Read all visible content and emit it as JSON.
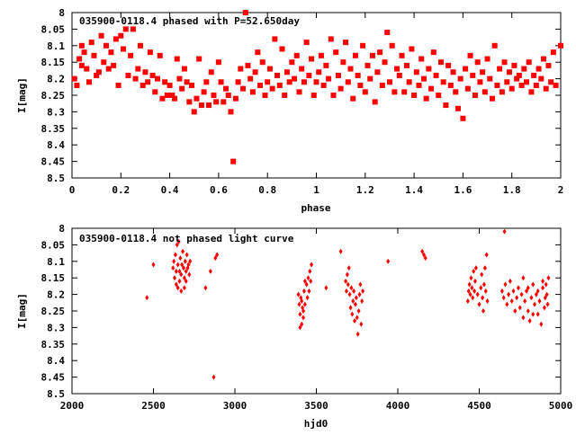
{
  "chart_data": [
    {
      "type": "scatter",
      "title": "035900-0118.4 phased with P=52.650day",
      "xlabel": "phase",
      "ylabel": "I[mag]",
      "xlim": [
        0,
        2
      ],
      "ylim": [
        8.5,
        8.0
      ],
      "y_inverted": true,
      "grid": false,
      "marker_color": "#ff0000",
      "x_ticks": [
        "0",
        "0.2",
        "0.4",
        "0.6",
        "0.8",
        "1",
        "1.2",
        "1.4",
        "1.6",
        "1.8",
        "2"
      ],
      "y_ticks": [
        "8",
        "8.05",
        "8.1",
        "8.15",
        "8.2",
        "8.25",
        "8.3",
        "8.35",
        "8.4",
        "8.45",
        "8.5"
      ],
      "x_tick_values": [
        0,
        0.2,
        0.4,
        0.6,
        0.8,
        1.0,
        1.2,
        1.4,
        1.6,
        1.8,
        2.0
      ],
      "y_tick_values": [
        8.0,
        8.05,
        8.1,
        8.15,
        8.2,
        8.25,
        8.3,
        8.35,
        8.4,
        8.45,
        8.5
      ],
      "points": [
        [
          0.01,
          8.2
        ],
        [
          0.02,
          8.22
        ],
        [
          0.03,
          8.14
        ],
        [
          0.04,
          8.16
        ],
        [
          0.04,
          8.1
        ],
        [
          0.05,
          8.12
        ],
        [
          0.06,
          8.17
        ],
        [
          0.07,
          8.21
        ],
        [
          0.08,
          8.09
        ],
        [
          0.09,
          8.13
        ],
        [
          0.1,
          8.19
        ],
        [
          0.11,
          8.18
        ],
        [
          0.12,
          8.07
        ],
        [
          0.13,
          8.15
        ],
        [
          0.14,
          8.1
        ],
        [
          0.15,
          8.17
        ],
        [
          0.16,
          8.12
        ],
        [
          0.17,
          8.16
        ],
        [
          0.18,
          8.08
        ],
        [
          0.19,
          8.22
        ],
        [
          0.2,
          8.07
        ],
        [
          0.21,
          8.11
        ],
        [
          0.22,
          8.05
        ],
        [
          0.23,
          8.19
        ],
        [
          0.24,
          8.13
        ],
        [
          0.25,
          8.05
        ],
        [
          0.26,
          8.2
        ],
        [
          0.27,
          8.17
        ],
        [
          0.28,
          8.1
        ],
        [
          0.29,
          8.22
        ],
        [
          0.3,
          8.18
        ],
        [
          0.31,
          8.21
        ],
        [
          0.32,
          8.12
        ],
        [
          0.33,
          8.19
        ],
        [
          0.34,
          8.24
        ],
        [
          0.35,
          8.2
        ],
        [
          0.36,
          8.13
        ],
        [
          0.37,
          8.26
        ],
        [
          0.38,
          8.21
        ],
        [
          0.39,
          8.25
        ],
        [
          0.4,
          8.22
        ],
        [
          0.41,
          8.25
        ],
        [
          0.42,
          8.26
        ],
        [
          0.43,
          8.14
        ],
        [
          0.44,
          8.2
        ],
        [
          0.45,
          8.23
        ],
        [
          0.46,
          8.17
        ],
        [
          0.47,
          8.21
        ],
        [
          0.48,
          8.27
        ],
        [
          0.49,
          8.22
        ],
        [
          0.5,
          8.3
        ],
        [
          0.51,
          8.26
        ],
        [
          0.52,
          8.14
        ],
        [
          0.53,
          8.28
        ],
        [
          0.54,
          8.24
        ],
        [
          0.55,
          8.21
        ],
        [
          0.56,
          8.28
        ],
        [
          0.57,
          8.18
        ],
        [
          0.58,
          8.25
        ],
        [
          0.59,
          8.27
        ],
        [
          0.6,
          8.15
        ],
        [
          0.61,
          8.21
        ],
        [
          0.62,
          8.27
        ],
        [
          0.63,
          8.23
        ],
        [
          0.64,
          8.25
        ],
        [
          0.65,
          8.3
        ],
        [
          0.66,
          8.45
        ],
        [
          0.67,
          8.26
        ],
        [
          0.68,
          8.21
        ],
        [
          0.69,
          8.17
        ],
        [
          0.7,
          8.23
        ],
        [
          0.71,
          8.0
        ],
        [
          0.72,
          8.16
        ],
        [
          0.73,
          8.2
        ],
        [
          0.74,
          8.24
        ],
        [
          0.75,
          8.18
        ],
        [
          0.76,
          8.12
        ],
        [
          0.77,
          8.22
        ],
        [
          0.78,
          8.15
        ],
        [
          0.79,
          8.25
        ],
        [
          0.8,
          8.21
        ],
        [
          0.81,
          8.17
        ],
        [
          0.82,
          8.23
        ],
        [
          0.83,
          8.08
        ],
        [
          0.84,
          8.19
        ],
        [
          0.85,
          8.22
        ],
        [
          0.86,
          8.11
        ],
        [
          0.87,
          8.25
        ],
        [
          0.88,
          8.18
        ],
        [
          0.89,
          8.21
        ],
        [
          0.9,
          8.15
        ],
        [
          0.91,
          8.2
        ],
        [
          0.92,
          8.13
        ],
        [
          0.93,
          8.24
        ],
        [
          0.94,
          8.17
        ],
        [
          0.95,
          8.21
        ],
        [
          0.96,
          8.09
        ],
        [
          0.97,
          8.19
        ],
        [
          0.98,
          8.14
        ],
        [
          0.99,
          8.25
        ],
        [
          1.0,
          8.21
        ],
        [
          1.01,
          8.18
        ],
        [
          1.02,
          8.13
        ],
        [
          1.03,
          8.22
        ],
        [
          1.04,
          8.16
        ],
        [
          1.05,
          8.2
        ],
        [
          1.06,
          8.08
        ],
        [
          1.07,
          8.25
        ],
        [
          1.08,
          8.12
        ],
        [
          1.09,
          8.19
        ],
        [
          1.1,
          8.23
        ],
        [
          1.11,
          8.15
        ],
        [
          1.12,
          8.09
        ],
        [
          1.13,
          8.21
        ],
        [
          1.14,
          8.17
        ],
        [
          1.15,
          8.26
        ],
        [
          1.16,
          8.13
        ],
        [
          1.17,
          8.19
        ],
        [
          1.18,
          8.22
        ],
        [
          1.19,
          8.1
        ],
        [
          1.2,
          8.24
        ],
        [
          1.21,
          8.16
        ],
        [
          1.22,
          8.2
        ],
        [
          1.23,
          8.13
        ],
        [
          1.24,
          8.27
        ],
        [
          1.25,
          8.18
        ],
        [
          1.26,
          8.12
        ],
        [
          1.27,
          8.22
        ],
        [
          1.28,
          8.15
        ],
        [
          1.29,
          8.06
        ],
        [
          1.3,
          8.21
        ],
        [
          1.31,
          8.1
        ],
        [
          1.32,
          8.24
        ],
        [
          1.33,
          8.17
        ],
        [
          1.34,
          8.19
        ],
        [
          1.35,
          8.13
        ],
        [
          1.36,
          8.24
        ],
        [
          1.37,
          8.16
        ],
        [
          1.38,
          8.21
        ],
        [
          1.39,
          8.11
        ],
        [
          1.4,
          8.25
        ],
        [
          1.41,
          8.18
        ],
        [
          1.42,
          8.22
        ],
        [
          1.43,
          8.14
        ],
        [
          1.44,
          8.2
        ],
        [
          1.45,
          8.26
        ],
        [
          1.46,
          8.17
        ],
        [
          1.47,
          8.23
        ],
        [
          1.48,
          8.12
        ],
        [
          1.49,
          8.19
        ],
        [
          1.5,
          8.25
        ],
        [
          1.51,
          8.15
        ],
        [
          1.52,
          8.21
        ],
        [
          1.53,
          8.28
        ],
        [
          1.54,
          8.16
        ],
        [
          1.55,
          8.22
        ],
        [
          1.56,
          8.18
        ],
        [
          1.57,
          8.24
        ],
        [
          1.58,
          8.29
        ],
        [
          1.59,
          8.2
        ],
        [
          1.6,
          8.32
        ],
        [
          1.61,
          8.17
        ],
        [
          1.62,
          8.23
        ],
        [
          1.63,
          8.13
        ],
        [
          1.64,
          8.19
        ],
        [
          1.65,
          8.25
        ],
        [
          1.66,
          8.15
        ],
        [
          1.67,
          8.21
        ],
        [
          1.68,
          8.18
        ],
        [
          1.69,
          8.24
        ],
        [
          1.7,
          8.14
        ],
        [
          1.71,
          8.2
        ],
        [
          1.72,
          8.26
        ],
        [
          1.73,
          8.1
        ],
        [
          1.74,
          8.22
        ],
        [
          1.75,
          8.17
        ],
        [
          1.76,
          8.24
        ],
        [
          1.77,
          8.15
        ],
        [
          1.78,
          8.21
        ],
        [
          1.79,
          8.18
        ],
        [
          1.8,
          8.23
        ],
        [
          1.81,
          8.16
        ],
        [
          1.82,
          8.2
        ],
        [
          1.83,
          8.19
        ],
        [
          1.84,
          8.22
        ],
        [
          1.85,
          8.17
        ],
        [
          1.86,
          8.21
        ],
        [
          1.87,
          8.15
        ],
        [
          1.88,
          8.24
        ],
        [
          1.89,
          8.19
        ],
        [
          1.9,
          8.22
        ],
        [
          1.91,
          8.17
        ],
        [
          1.92,
          8.2
        ],
        [
          1.93,
          8.14
        ],
        [
          1.94,
          8.23
        ],
        [
          1.95,
          8.16
        ],
        [
          1.96,
          8.21
        ],
        [
          1.97,
          8.12
        ],
        [
          1.98,
          8.22
        ],
        [
          2.0,
          8.1
        ]
      ]
    },
    {
      "type": "scatter",
      "title": "035900-0118.4 not phased light curve",
      "xlabel": "hjd0",
      "ylabel": "I[mag]",
      "xlim": [
        2000,
        5000
      ],
      "ylim": [
        8.5,
        8.0
      ],
      "y_inverted": true,
      "grid": false,
      "marker_color": "#ff0000",
      "x_ticks": [
        "2000",
        "2500",
        "3000",
        "3500",
        "4000",
        "4500",
        "5000"
      ],
      "y_ticks": [
        "8",
        "8.05",
        "8.1",
        "8.15",
        "8.2",
        "8.25",
        "8.3",
        "8.35",
        "8.4",
        "8.45",
        "8.5"
      ],
      "x_tick_values": [
        2000,
        2500,
        3000,
        3500,
        4000,
        4500,
        5000
      ],
      "y_tick_values": [
        8.0,
        8.05,
        8.1,
        8.15,
        8.2,
        8.25,
        8.3,
        8.35,
        8.4,
        8.45,
        8.5
      ],
      "points": [
        [
          2460,
          8.21
        ],
        [
          2500,
          8.11
        ],
        [
          2620,
          8.12
        ],
        [
          2625,
          8.1
        ],
        [
          2630,
          8.15
        ],
        [
          2635,
          8.08
        ],
        [
          2640,
          8.13
        ],
        [
          2645,
          8.05
        ],
        [
          2650,
          8.11
        ],
        [
          2655,
          8.04
        ],
        [
          2660,
          8.13
        ],
        [
          2665,
          8.09
        ],
        [
          2670,
          8.14
        ],
        [
          2675,
          8.11
        ],
        [
          2680,
          8.07
        ],
        [
          2685,
          8.12
        ],
        [
          2690,
          8.15
        ],
        [
          2695,
          8.1
        ],
        [
          2700,
          8.13
        ],
        [
          2705,
          8.08
        ],
        [
          2710,
          8.12
        ],
        [
          2715,
          8.11
        ],
        [
          2720,
          8.14
        ],
        [
          2725,
          8.1
        ],
        [
          2640,
          8.17
        ],
        [
          2650,
          8.18
        ],
        [
          2660,
          8.16
        ],
        [
          2670,
          8.19
        ],
        [
          2690,
          8.18
        ],
        [
          2700,
          8.16
        ],
        [
          2820,
          8.18
        ],
        [
          2850,
          8.13
        ],
        [
          2870,
          8.45
        ],
        [
          2880,
          8.09
        ],
        [
          2890,
          8.08
        ],
        [
          3390,
          8.2
        ],
        [
          3395,
          8.23
        ],
        [
          3400,
          8.26
        ],
        [
          3405,
          8.21
        ],
        [
          3410,
          8.29
        ],
        [
          3415,
          8.24
        ],
        [
          3420,
          8.27
        ],
        [
          3425,
          8.19
        ],
        [
          3430,
          8.23
        ],
        [
          3440,
          8.17
        ],
        [
          3445,
          8.21
        ],
        [
          3450,
          8.15
        ],
        [
          3455,
          8.19
        ],
        [
          3460,
          8.13
        ],
        [
          3465,
          8.16
        ],
        [
          3470,
          8.11
        ],
        [
          3400,
          8.3
        ],
        [
          3410,
          8.22
        ],
        [
          3420,
          8.25
        ],
        [
          3430,
          8.16
        ],
        [
          3560,
          8.18
        ],
        [
          3650,
          8.07
        ],
        [
          3680,
          8.16
        ],
        [
          3685,
          8.19
        ],
        [
          3690,
          8.14
        ],
        [
          3695,
          8.17
        ],
        [
          3700,
          8.12
        ],
        [
          3705,
          8.2
        ],
        [
          3710,
          8.24
        ],
        [
          3715,
          8.18
        ],
        [
          3720,
          8.26
        ],
        [
          3725,
          8.22
        ],
        [
          3730,
          8.19
        ],
        [
          3735,
          8.28
        ],
        [
          3740,
          8.23
        ],
        [
          3745,
          8.21
        ],
        [
          3750,
          8.27
        ],
        [
          3755,
          8.32
        ],
        [
          3760,
          8.25
        ],
        [
          3765,
          8.2
        ],
        [
          3770,
          8.17
        ],
        [
          3775,
          8.29
        ],
        [
          3780,
          8.22
        ],
        [
          3785,
          8.19
        ],
        [
          3940,
          8.1
        ],
        [
          4150,
          8.07
        ],
        [
          4160,
          8.08
        ],
        [
          4170,
          8.09
        ],
        [
          4430,
          8.22
        ],
        [
          4435,
          8.19
        ],
        [
          4440,
          8.17
        ],
        [
          4445,
          8.2
        ],
        [
          4450,
          8.15
        ],
        [
          4455,
          8.18
        ],
        [
          4460,
          8.21
        ],
        [
          4465,
          8.13
        ],
        [
          4470,
          8.19
        ],
        [
          4475,
          8.16
        ],
        [
          4480,
          8.12
        ],
        [
          4490,
          8.2
        ],
        [
          4500,
          8.23
        ],
        [
          4510,
          8.18
        ],
        [
          4515,
          8.14
        ],
        [
          4520,
          8.21
        ],
        [
          4525,
          8.25
        ],
        [
          4530,
          8.17
        ],
        [
          4535,
          8.12
        ],
        [
          4540,
          8.19
        ],
        [
          4545,
          8.08
        ],
        [
          4550,
          8.22
        ],
        [
          4655,
          8.01
        ],
        [
          4640,
          8.19
        ],
        [
          4650,
          8.21
        ],
        [
          4660,
          8.17
        ],
        [
          4670,
          8.23
        ],
        [
          4680,
          8.2
        ],
        [
          4690,
          8.16
        ],
        [
          4700,
          8.22
        ],
        [
          4710,
          8.19
        ],
        [
          4720,
          8.25
        ],
        [
          4730,
          8.21
        ],
        [
          4740,
          8.18
        ],
        [
          4750,
          8.24
        ],
        [
          4760,
          8.2
        ],
        [
          4770,
          8.27
        ],
        [
          4780,
          8.22
        ],
        [
          4790,
          8.19
        ],
        [
          4800,
          8.25
        ],
        [
          4810,
          8.28
        ],
        [
          4820,
          8.21
        ],
        [
          4830,
          8.17
        ],
        [
          4840,
          8.23
        ],
        [
          4850,
          8.2
        ],
        [
          4860,
          8.26
        ],
        [
          4870,
          8.22
        ],
        [
          4880,
          8.29
        ],
        [
          4890,
          8.18
        ],
        [
          4900,
          8.24
        ],
        [
          4905,
          8.21
        ],
        [
          4910,
          8.17
        ],
        [
          4915,
          8.2
        ],
        [
          4920,
          8.23
        ],
        [
          4925,
          8.15
        ],
        [
          4890,
          8.16
        ],
        [
          4860,
          8.19
        ],
        [
          4830,
          8.26
        ],
        [
          4800,
          8.18
        ],
        [
          4770,
          8.15
        ]
      ]
    }
  ]
}
